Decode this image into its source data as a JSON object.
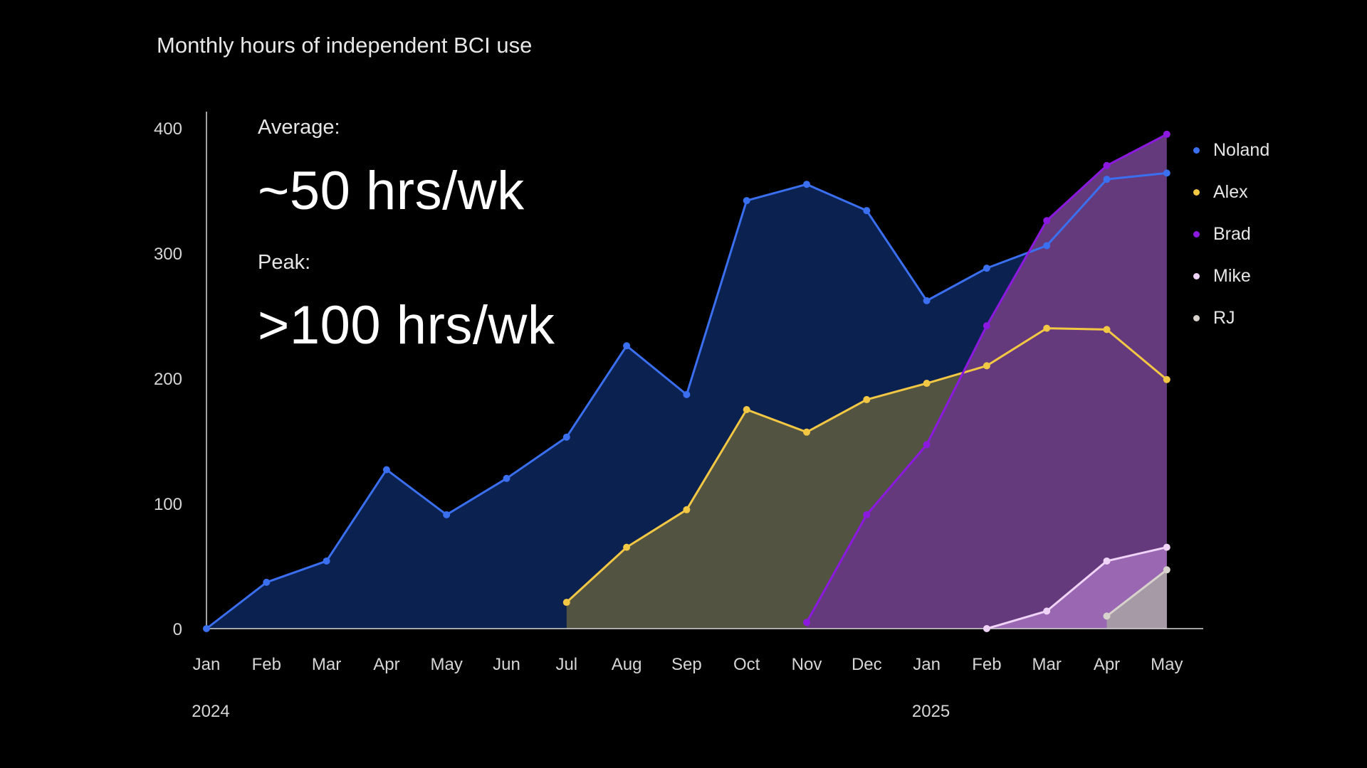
{
  "chart_data": {
    "type": "area",
    "title": "Monthly hours of independent BCI use",
    "ylim": [
      0,
      400
    ],
    "yticks": [
      0,
      100,
      200,
      300,
      400
    ],
    "categories": [
      "Jan",
      "Feb",
      "Mar",
      "Apr",
      "May",
      "Jun",
      "Jul",
      "Aug",
      "Sep",
      "Oct",
      "Nov",
      "Dec",
      "Jan",
      "Feb",
      "Mar",
      "Apr",
      "May"
    ],
    "year_labels": [
      {
        "label": "2024",
        "index": 0
      },
      {
        "label": "2025",
        "index": 12
      }
    ],
    "series": [
      {
        "name": "Noland",
        "color": "#3a6ff0",
        "fill": "#0b2150",
        "values": [
          0,
          37,
          54,
          127,
          91,
          120,
          153,
          226,
          187,
          342,
          355,
          334,
          262,
          288,
          306,
          359,
          364
        ]
      },
      {
        "name": "Alex",
        "color": "#f2c744",
        "fill": "#535342",
        "values": [
          null,
          null,
          null,
          null,
          null,
          null,
          21,
          65,
          95,
          175,
          157,
          183,
          196,
          210,
          240,
          239,
          199
        ]
      },
      {
        "name": "Brad",
        "color": "#8c19e0",
        "fill": "#653a7c",
        "values": [
          null,
          null,
          null,
          null,
          null,
          null,
          null,
          null,
          null,
          null,
          5,
          91,
          147,
          242,
          326,
          370,
          395
        ]
      },
      {
        "name": "Mike",
        "color": "#f0d4f8",
        "fill": "#9a68b2",
        "values": [
          null,
          null,
          null,
          null,
          null,
          null,
          null,
          null,
          null,
          null,
          null,
          null,
          null,
          0,
          14,
          54,
          65
        ]
      },
      {
        "name": "RJ",
        "color": "#d7d3cc",
        "fill": "#a69aa6",
        "values": [
          null,
          null,
          null,
          null,
          null,
          null,
          null,
          null,
          null,
          null,
          null,
          null,
          null,
          null,
          null,
          10,
          47
        ]
      }
    ],
    "grid": false,
    "legend": "right"
  },
  "annotations": {
    "average_label": "Average:",
    "average_value": "~50 hrs/wk",
    "peak_label": "Peak:",
    "peak_value": ">100 hrs/wk"
  }
}
